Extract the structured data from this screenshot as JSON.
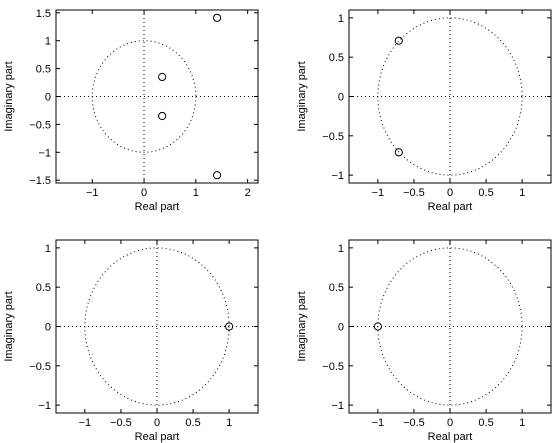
{
  "chart_data": [
    {
      "type": "scatter",
      "title": "",
      "xlabel": "Real part",
      "ylabel": "Imaginary part",
      "xlim": [
        -1.7,
        2.2
      ],
      "ylim": [
        -1.55,
        1.55
      ],
      "xticks": [
        -1,
        0,
        1,
        2
      ],
      "yticks": [
        -1.5,
        -1,
        -0.5,
        0,
        0.5,
        1,
        1.5
      ],
      "unit_circle": true,
      "marker": "circle",
      "points": [
        {
          "x": 1.41,
          "y": 1.41
        },
        {
          "x": 0.35,
          "y": 0.35
        },
        {
          "x": 0.35,
          "y": -0.35
        },
        {
          "x": 1.41,
          "y": -1.41
        }
      ]
    },
    {
      "type": "scatter",
      "title": "",
      "xlabel": "Real part",
      "ylabel": "Imaginary part",
      "xlim": [
        -1.4,
        1.4
      ],
      "ylim": [
        -1.1,
        1.1
      ],
      "xticks": [
        -1,
        -0.5,
        0,
        0.5,
        1
      ],
      "yticks": [
        -1,
        -0.5,
        0,
        0.5,
        1
      ],
      "unit_circle": true,
      "marker": "circle",
      "points": [
        {
          "x": -0.71,
          "y": 0.71
        },
        {
          "x": -0.71,
          "y": -0.71
        }
      ]
    },
    {
      "type": "scatter",
      "title": "",
      "xlabel": "Real part",
      "ylabel": "Imaginary part",
      "xlim": [
        -1.4,
        1.4
      ],
      "ylim": [
        -1.1,
        1.1
      ],
      "xticks": [
        -1,
        -0.5,
        0,
        0.5,
        1
      ],
      "yticks": [
        -1,
        -0.5,
        0,
        0.5,
        1
      ],
      "unit_circle": true,
      "marker": "circle",
      "points": [
        {
          "x": 1,
          "y": 0
        }
      ]
    },
    {
      "type": "scatter",
      "title": "",
      "xlabel": "Real part",
      "ylabel": "Imaginary part",
      "xlim": [
        -1.4,
        1.4
      ],
      "ylim": [
        -1.1,
        1.1
      ],
      "xticks": [
        -1,
        -0.5,
        0,
        0.5,
        1
      ],
      "yticks": [
        -1,
        -0.5,
        0,
        0.5,
        1
      ],
      "unit_circle": true,
      "marker": "circle",
      "points": [
        {
          "x": -1,
          "y": 0
        }
      ]
    }
  ]
}
